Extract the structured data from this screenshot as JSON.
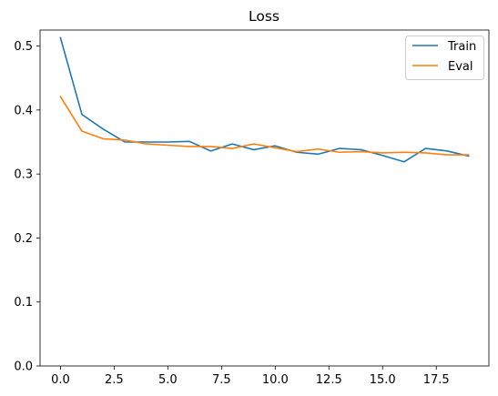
{
  "chart_data": {
    "type": "line",
    "title": "Loss",
    "xlabel": "",
    "ylabel": "",
    "x": [
      0,
      1,
      2,
      3,
      4,
      5,
      6,
      7,
      8,
      9,
      10,
      11,
      12,
      13,
      14,
      15,
      16,
      17,
      18,
      19
    ],
    "xlim": [
      -0.95,
      19.95
    ],
    "ylim": [
      0.0,
      0.525
    ],
    "xticks": [
      0.0,
      2.5,
      5.0,
      7.5,
      10.0,
      12.5,
      15.0,
      17.5
    ],
    "xtick_labels": [
      "0.0",
      "2.5",
      "5.0",
      "7.5",
      "10.0",
      "12.5",
      "15.0",
      "17.5"
    ],
    "yticks": [
      0.0,
      0.1,
      0.2,
      0.3,
      0.4,
      0.5
    ],
    "ytick_labels": [
      "0.0",
      "0.1",
      "0.2",
      "0.3",
      "0.4",
      "0.5"
    ],
    "grid": false,
    "legend_position": "top-right",
    "series": [
      {
        "name": "Train",
        "color": "#1f77b4",
        "values": [
          0.513,
          0.393,
          0.37,
          0.35,
          0.35,
          0.35,
          0.351,
          0.336,
          0.347,
          0.338,
          0.344,
          0.334,
          0.331,
          0.34,
          0.338,
          0.329,
          0.319,
          0.34,
          0.336,
          0.328
        ]
      },
      {
        "name": "Eval",
        "color": "#ff7f0e",
        "values": [
          0.421,
          0.367,
          0.355,
          0.353,
          0.347,
          0.345,
          0.343,
          0.343,
          0.34,
          0.347,
          0.341,
          0.335,
          0.339,
          0.334,
          0.335,
          0.333,
          0.334,
          0.333,
          0.33,
          0.33
        ]
      }
    ]
  }
}
